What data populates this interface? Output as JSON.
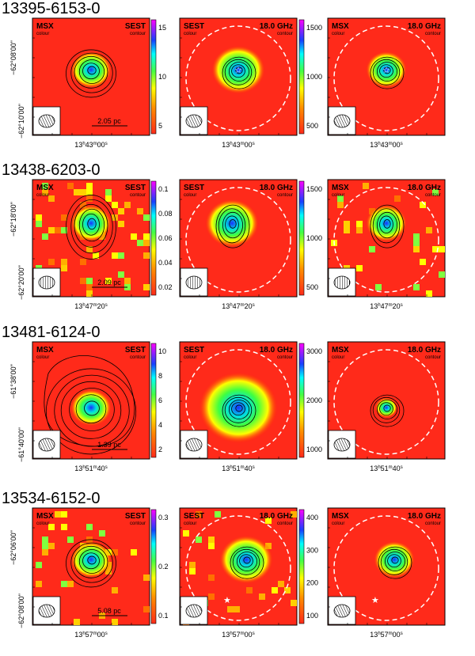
{
  "figure": {
    "rows": [
      {
        "source": "13395-6153-0",
        "dec_ticks": [
          "−62°08'00''",
          "−62°10'00''"
        ],
        "ra_label": "13h43m00s",
        "ra_main": "13",
        "ra_min": "43",
        "ra_sec": "00",
        "scale_bar": "2.05 pc",
        "panels": [
          {
            "top_left": "MSX",
            "top_left_sub": "colour",
            "top_right": "SEST",
            "top_right_sub": "contour",
            "colorbar": [
              "15",
              "10",
              "5"
            ]
          },
          {
            "top_left": "SEST",
            "top_left_sub": "colour",
            "top_right": "18.0 GHz",
            "top_right_sub": "contour",
            "colorbar": [
              "1500",
              "1000",
              "500"
            ]
          },
          {
            "top_left": "MSX",
            "top_left_sub": "colour",
            "top_right": "18.0 GHz",
            "top_right_sub": "contour",
            "colorbar": []
          }
        ]
      },
      {
        "source": "13438-6203-0",
        "dec_ticks": [
          "−62°18'00''",
          "−62°20'00''"
        ],
        "ra_label": "13h47m20s",
        "ra_main": "13",
        "ra_min": "47",
        "ra_sec": "20",
        "scale_bar": "2.09 pc",
        "panels": [
          {
            "top_left": "MSX",
            "top_left_sub": "colour",
            "top_right": "SEST",
            "top_right_sub": "contour",
            "colorbar": [
              "0.1",
              "0.08",
              "0.06",
              "0.04",
              "0.02"
            ]
          },
          {
            "top_left": "SEST",
            "top_left_sub": "colour",
            "top_right": "18.0 GHz",
            "top_right_sub": "contour",
            "colorbar": [
              "1500",
              "1000",
              "500"
            ]
          },
          {
            "top_left": "MSX",
            "top_left_sub": "colour",
            "top_right": "18.0 GHz",
            "top_right_sub": "contour",
            "colorbar": []
          }
        ]
      },
      {
        "source": "13481-6124-0",
        "dec_ticks": [
          "−61°38'00''",
          "−61°40'00''"
        ],
        "ra_label": "13h51m40s",
        "ra_main": "13",
        "ra_min": "51",
        "ra_sec": "40",
        "scale_bar": "1.39 pc",
        "panels": [
          {
            "top_left": "MSX",
            "top_left_sub": "colour",
            "top_right": "SEST",
            "top_right_sub": "contour",
            "colorbar": [
              "10",
              "8",
              "6",
              "4",
              "2"
            ]
          },
          {
            "top_left": "SEST",
            "top_left_sub": "colour",
            "top_right": "18.0 GHz",
            "top_right_sub": "contour",
            "colorbar": [
              "3000",
              "2000",
              "1000"
            ]
          },
          {
            "top_left": "MSX",
            "top_left_sub": "colour",
            "top_right": "18.0 GHz",
            "top_right_sub": "contour",
            "colorbar": []
          }
        ]
      },
      {
        "source": "13534-6152-0",
        "dec_ticks": [
          "−62°06'00''",
          "−62°08'00''"
        ],
        "ra_label": "13h57m00s",
        "ra_main": "13",
        "ra_min": "57",
        "ra_sec": "00",
        "scale_bar": "5.08 pc",
        "panels": [
          {
            "top_left": "MSX",
            "top_left_sub": "colour",
            "top_right": "SEST",
            "top_right_sub": "contour",
            "colorbar": [
              "0.3",
              "0.2",
              "0.1"
            ]
          },
          {
            "top_left": "SEST",
            "top_left_sub": "colour",
            "top_right": "18.0 GHz",
            "top_right_sub": "contour",
            "colorbar": [
              "400",
              "300",
              "200",
              "100"
            ]
          },
          {
            "top_left": "MSX",
            "top_left_sub": "colour",
            "top_right": "18.0 GHz",
            "top_right_sub": "contour",
            "colorbar": []
          }
        ]
      }
    ]
  }
}
